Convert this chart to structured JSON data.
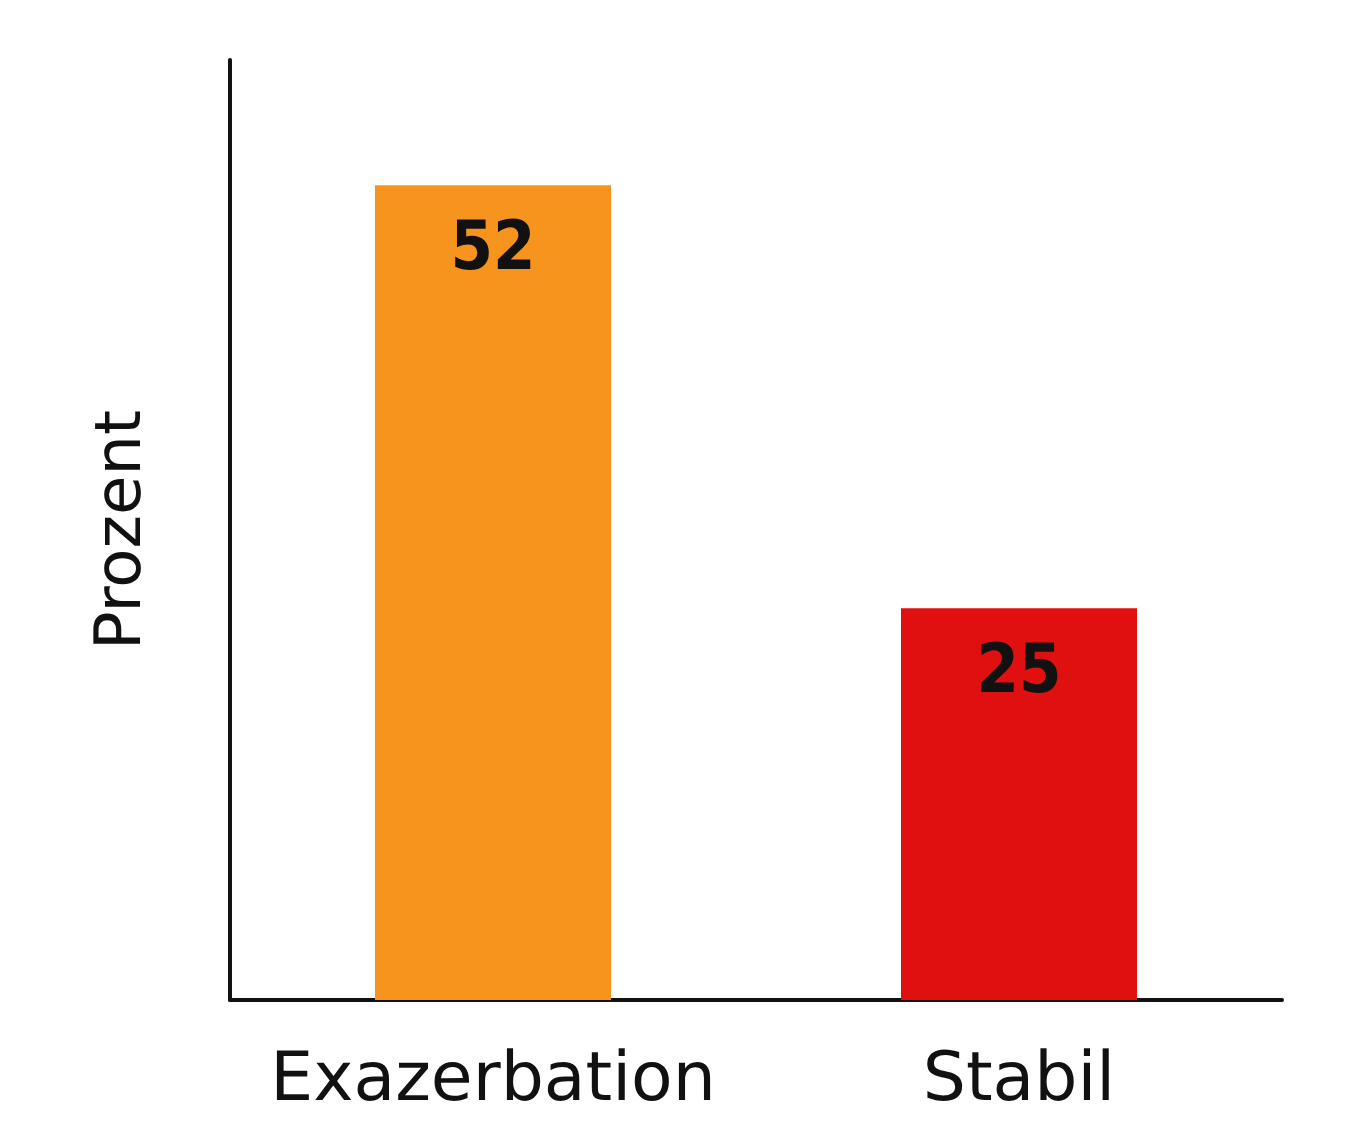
{
  "chart_data": {
    "type": "bar",
    "ylabel": "Prozent",
    "categories": [
      "Exazerbation",
      "Stabil"
    ],
    "values": [
      52,
      25
    ],
    "colors": [
      "#f7941d",
      "#e01010"
    ],
    "data_labels": true,
    "tick_labels": "x"
  }
}
